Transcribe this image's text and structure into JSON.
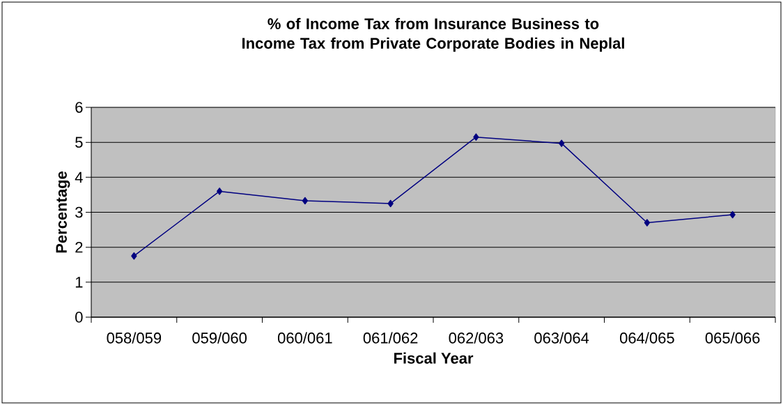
{
  "chart_data": {
    "type": "line",
    "title": "% of Income Tax from Insurance Business to Income Tax from Private Corporate Bodies in Neplal",
    "xlabel": "Fiscal Year",
    "ylabel": "Percentage",
    "categories": [
      "058/059",
      "059/060",
      "060/061",
      "061/062",
      "062/063",
      "063/064",
      "064/065",
      "065/066"
    ],
    "series": [
      {
        "color": "#000080",
        "values": [
          1.75,
          3.6,
          3.33,
          3.25,
          5.15,
          4.97,
          2.7,
          2.93
        ]
      }
    ],
    "ylim": [
      0,
      6
    ],
    "yticks": [
      0,
      1,
      2,
      3,
      4,
      5,
      6
    ],
    "grid": "y",
    "marker": "diamond",
    "line_style": "solid"
  }
}
